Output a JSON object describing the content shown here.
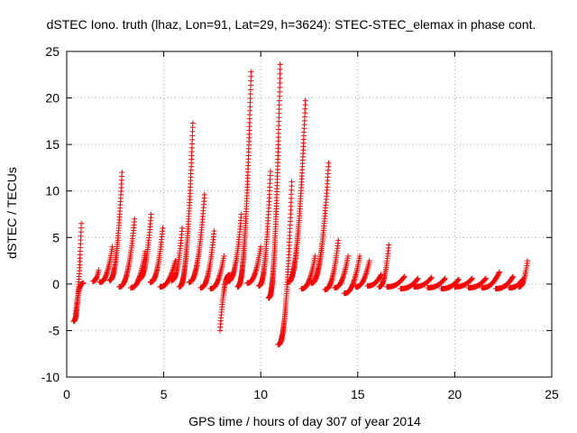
{
  "chart_data": {
    "type": "scatter",
    "title": "dSTEC Iono. truth (lhaz, Lon=91, Lat=29, h=3624): STEC-STEC_elemax in phase cont.",
    "xlabel": "GPS time / hours of day 307 of year 2014",
    "ylabel": "dSTEC  / TECUs",
    "xlim": [
      0,
      25
    ],
    "ylim": [
      -10,
      25
    ],
    "xticks": [
      "0",
      "5",
      "10",
      "15",
      "20",
      "25"
    ],
    "yticks": [
      "-10",
      "-5",
      "0",
      "5",
      "10",
      "15",
      "20",
      "25"
    ],
    "grid": true,
    "legend": "none",
    "marker": "plus",
    "color": "#ff0000",
    "series": [
      {
        "name": "",
        "arcs": [
          {
            "x": [
              0.35,
              0.75
            ],
            "y": [
              -4.0,
              6.5
            ]
          },
          {
            "x": [
              0.45,
              0.85
            ],
            "y": [
              -3.2,
              0.1
            ]
          },
          {
            "x": [
              1.35,
              1.65
            ],
            "y": [
              0.3,
              1.5
            ]
          },
          {
            "x": [
              1.7,
              2.35
            ],
            "y": [
              0.2,
              4.0
            ]
          },
          {
            "x": [
              2.2,
              2.85
            ],
            "y": [
              0.4,
              12.0
            ]
          },
          {
            "x": [
              2.7,
              3.5
            ],
            "y": [
              -0.3,
              7.0
            ]
          },
          {
            "x": [
              3.3,
              4.05
            ],
            "y": [
              -0.4,
              3.5
            ]
          },
          {
            "x": [
              3.7,
              4.35
            ],
            "y": [
              0.5,
              7.5
            ]
          },
          {
            "x": [
              4.3,
              4.95
            ],
            "y": [
              0.2,
              6.0
            ]
          },
          {
            "x": [
              4.8,
              5.6
            ],
            "y": [
              -0.3,
              2.5
            ]
          },
          {
            "x": [
              5.4,
              5.95
            ],
            "y": [
              0.4,
              6.0
            ]
          },
          {
            "x": [
              5.8,
              6.5
            ],
            "y": [
              -0.3,
              17.3
            ]
          },
          {
            "x": [
              6.3,
              7.1
            ],
            "y": [
              0.2,
              9.6
            ]
          },
          {
            "x": [
              6.9,
              7.6
            ],
            "y": [
              -0.4,
              5.7
            ]
          },
          {
            "x": [
              7.4,
              8.1
            ],
            "y": [
              -0.5,
              3.0
            ]
          },
          {
            "x": [
              7.9,
              8.4
            ],
            "y": [
              -5.0,
              1.0
            ]
          },
          {
            "x": [
              8.3,
              9.0
            ],
            "y": [
              0.3,
              7.5
            ]
          },
          {
            "x": [
              8.8,
              9.5
            ],
            "y": [
              -0.3,
              22.8
            ]
          },
          {
            "x": [
              9.3,
              10.0
            ],
            "y": [
              0.1,
              4.0
            ]
          },
          {
            "x": [
              9.9,
              10.5
            ],
            "y": [
              -0.2,
              12.1
            ]
          },
          {
            "x": [
              10.4,
              11.0
            ],
            "y": [
              -1.5,
              23.6
            ]
          },
          {
            "x": [
              10.9,
              11.6
            ],
            "y": [
              -6.5,
              11.0
            ]
          },
          {
            "x": [
              11.4,
              12.3
            ],
            "y": [
              0.2,
              19.7
            ]
          },
          {
            "x": [
              12.1,
              12.8
            ],
            "y": [
              -0.5,
              3.0
            ]
          },
          {
            "x": [
              12.6,
              13.5
            ],
            "y": [
              0.1,
              13.0
            ]
          },
          {
            "x": [
              13.3,
              14.0
            ],
            "y": [
              -0.6,
              4.7
            ]
          },
          {
            "x": [
              13.8,
              14.5
            ],
            "y": [
              -0.4,
              3.0
            ]
          },
          {
            "x": [
              14.3,
              15.1
            ],
            "y": [
              -1.0,
              3.0
            ]
          },
          {
            "x": [
              14.9,
              15.6
            ],
            "y": [
              -0.3,
              2.5
            ]
          },
          {
            "x": [
              15.5,
              16.2
            ],
            "y": [
              -0.2,
              1.0
            ]
          },
          {
            "x": [
              16.1,
              16.6
            ],
            "y": [
              -0.3,
              4.2
            ]
          },
          {
            "x": [
              16.5,
              17.4
            ],
            "y": [
              -0.3,
              0.8
            ]
          },
          {
            "x": [
              17.2,
              18.1
            ],
            "y": [
              -0.5,
              0.6
            ]
          },
          {
            "x": [
              17.9,
              18.8
            ],
            "y": [
              -0.3,
              0.7
            ]
          },
          {
            "x": [
              18.6,
              19.5
            ],
            "y": [
              -0.4,
              0.6
            ]
          },
          {
            "x": [
              19.3,
              20.2
            ],
            "y": [
              -0.5,
              0.5
            ]
          },
          {
            "x": [
              20.0,
              20.9
            ],
            "y": [
              -0.3,
              0.6
            ]
          },
          {
            "x": [
              20.7,
              21.6
            ],
            "y": [
              -0.4,
              0.6
            ]
          },
          {
            "x": [
              21.4,
              22.3
            ],
            "y": [
              -0.4,
              1.3
            ]
          },
          {
            "x": [
              22.1,
              23.0
            ],
            "y": [
              -0.5,
              0.8
            ]
          },
          {
            "x": [
              22.8,
              23.5
            ],
            "y": [
              -0.4,
              0.5
            ]
          },
          {
            "x": [
              23.3,
              23.75
            ],
            "y": [
              -0.3,
              2.5
            ]
          }
        ]
      }
    ]
  }
}
